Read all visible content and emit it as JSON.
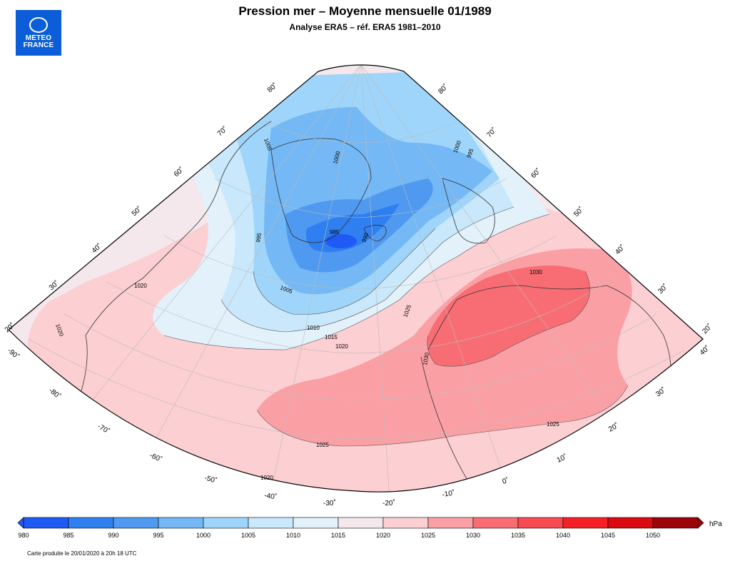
{
  "header": {
    "title": "Pression mer – Moyenne mensuelle 01/1989",
    "subtitle": "Analyse ERA5 – réf. ERA5 1981–2010"
  },
  "logo": {
    "line1": "METEO",
    "line2": "FRANCE"
  },
  "map": {
    "lat_labels_left": [
      "20˚",
      "30˚",
      "40˚",
      "50˚",
      "60˚",
      "70˚",
      "80˚"
    ],
    "lat_labels_right": [
      "80˚",
      "70˚",
      "60˚",
      "50˚",
      "40˚",
      "30˚",
      "20˚"
    ],
    "lon_labels_left": [
      "-90˚",
      "-80˚",
      "-70˚"
    ],
    "lon_labels_bottom": [
      "-60˚",
      "-50˚",
      "-40˚",
      "-30˚",
      "-20˚",
      "-10˚",
      "0˚",
      "10˚",
      "20˚",
      "30˚",
      "40˚"
    ],
    "contour_labels": [
      "1000",
      "1005",
      "1010",
      "1015",
      "1020",
      "1025",
      "1030",
      "995",
      "990",
      "985",
      "1020",
      "1025",
      "1020",
      "1030",
      "1025",
      "1020",
      "1005",
      "1000",
      "995"
    ]
  },
  "colorbar": {
    "unit": "hPa",
    "ticks": [
      "980",
      "985",
      "990",
      "995",
      "1000",
      "1005",
      "1010",
      "1015",
      "1020",
      "1025",
      "1030",
      "1035",
      "1040",
      "1045",
      "1050"
    ],
    "colors": [
      "#1f5af5",
      "#2f7ff0",
      "#4f9af0",
      "#74b8f5",
      "#9fd5fa",
      "#c9e8fb",
      "#e3f1fb",
      "#f5e8ec",
      "#fccfd2",
      "#faa0a5",
      "#f86d74",
      "#f74a52",
      "#f52026",
      "#d90a10",
      "#9b0309"
    ]
  },
  "footer": "Carte produite le 20/01/2020 à 20h 18 UTC"
}
